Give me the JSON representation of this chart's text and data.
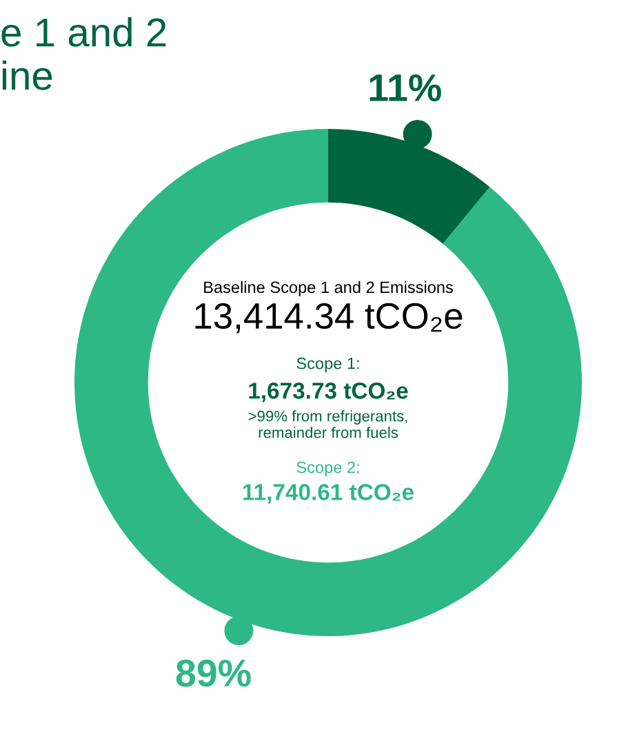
{
  "chart_data": {
    "type": "donut",
    "title": "e 1 and 2\nine",
    "categories": [
      null,
      null
    ],
    "values": [
      11,
      89
    ],
    "colors": [
      "#00643f",
      "#2db886"
    ],
    "value_labels": [
      "11%",
      "89%"
    ],
    "annotations": [
      "Baseline Scope 1 and 2 Emissions",
      "13,414.34 tCO₂e",
      "Scope 1:",
      "1,673.73 tCO₂e",
      ">99% from refrigerants,\nremainder from fuels",
      "Scope 2:",
      "11,740.61 tCO₂e"
    ],
    "legend": false
  }
}
